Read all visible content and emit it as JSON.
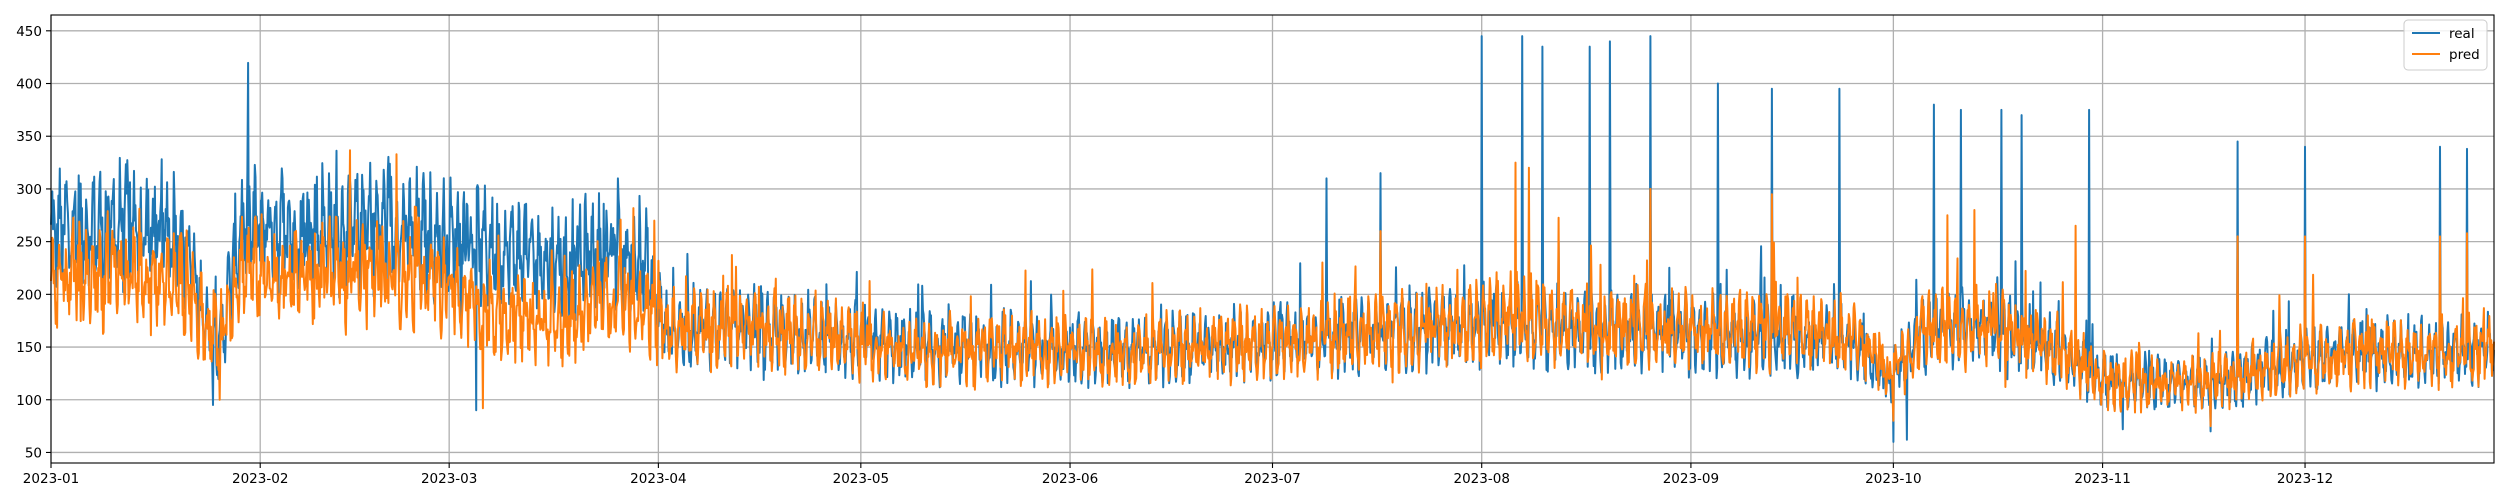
{
  "chart_data": {
    "type": "line",
    "title": "",
    "xlabel": "",
    "ylabel": "",
    "x_range": [
      "2023-01-01",
      "2023-12-29"
    ],
    "ylim": [
      40,
      465
    ],
    "grid": true,
    "legend_position": "top-right",
    "x_ticks": [
      "2023-01",
      "2023-02",
      "2023-03",
      "2023-04",
      "2023-05",
      "2023-06",
      "2023-07",
      "2023-08",
      "2023-09",
      "2023-10",
      "2023-11",
      "2023-12"
    ],
    "y_ticks": [
      "50",
      "100",
      "150",
      "200",
      "250",
      "300",
      "350",
      "400",
      "450"
    ],
    "series": [
      {
        "name": "real",
        "color": "#1f77b4",
        "points": [
          [
            "2023-01-01",
            255
          ],
          [
            "2023-01-04",
            265
          ],
          [
            "2023-01-08",
            262
          ],
          [
            "2023-01-12",
            268
          ],
          [
            "2023-01-16",
            258
          ],
          [
            "2023-01-20",
            262
          ],
          [
            "2023-01-24",
            175
          ],
          [
            "2023-01-26",
            150
          ],
          [
            "2023-01-29",
            262
          ],
          [
            "2023-02-02",
            265
          ],
          [
            "2023-02-06",
            258
          ],
          [
            "2023-02-10",
            265
          ],
          [
            "2023-02-14",
            260
          ],
          [
            "2023-02-18",
            265
          ],
          [
            "2023-02-22",
            262
          ],
          [
            "2023-02-26",
            255
          ],
          [
            "2023-03-02",
            250
          ],
          [
            "2023-03-06",
            245
          ],
          [
            "2023-03-10",
            240
          ],
          [
            "2023-03-14",
            235
          ],
          [
            "2023-03-18",
            230
          ],
          [
            "2023-03-22",
            240
          ],
          [
            "2023-03-26",
            235
          ],
          [
            "2023-03-30",
            230
          ],
          [
            "2023-04-02",
            165
          ],
          [
            "2023-04-08",
            170
          ],
          [
            "2023-04-15",
            168
          ],
          [
            "2023-04-22",
            165
          ],
          [
            "2023-05-01",
            155
          ],
          [
            "2023-05-08",
            150
          ],
          [
            "2023-05-15",
            148
          ],
          [
            "2023-05-22",
            150
          ],
          [
            "2023-06-01",
            148
          ],
          [
            "2023-06-10",
            145
          ],
          [
            "2023-06-20",
            150
          ],
          [
            "2023-07-01",
            155
          ],
          [
            "2023-07-10",
            160
          ],
          [
            "2023-07-20",
            165
          ],
          [
            "2023-07-31",
            170
          ],
          [
            "2023-08-05",
            175
          ],
          [
            "2023-08-15",
            165
          ],
          [
            "2023-08-25",
            165
          ],
          [
            "2023-09-05",
            160
          ],
          [
            "2023-09-15",
            160
          ],
          [
            "2023-09-25",
            155
          ],
          [
            "2023-10-01",
            120
          ],
          [
            "2023-10-05",
            165
          ],
          [
            "2023-10-15",
            170
          ],
          [
            "2023-10-25",
            150
          ],
          [
            "2023-11-01",
            120
          ],
          [
            "2023-11-10",
            115
          ],
          [
            "2023-11-20",
            120
          ],
          [
            "2023-12-01",
            140
          ],
          [
            "2023-12-10",
            145
          ],
          [
            "2023-12-20",
            145
          ],
          [
            "2023-12-29",
            150
          ]
        ],
        "peaks": [
          [
            "2023-01-25",
            325
          ],
          [
            "2023-03-26",
            310
          ],
          [
            "2023-07-09",
            310
          ],
          [
            "2023-07-17",
            315
          ],
          [
            "2023-08-01",
            445
          ],
          [
            "2023-08-07",
            445
          ],
          [
            "2023-08-10",
            435
          ],
          [
            "2023-08-17",
            435
          ],
          [
            "2023-08-20",
            440
          ],
          [
            "2023-08-26",
            445
          ],
          [
            "2023-09-05",
            400
          ],
          [
            "2023-09-13",
            395
          ],
          [
            "2023-09-23",
            395
          ],
          [
            "2023-10-03",
            380
          ],
          [
            "2023-10-07",
            380
          ],
          [
            "2023-10-11",
            375
          ],
          [
            "2023-10-17",
            375
          ],
          [
            "2023-10-20",
            370
          ],
          [
            "2023-10-30",
            375
          ],
          [
            "2023-11-21",
            345
          ],
          [
            "2023-12-01",
            340
          ],
          [
            "2023-12-21",
            340
          ],
          [
            "2023-12-25",
            338
          ]
        ],
        "troughs": [
          [
            "2023-01-25",
            95
          ],
          [
            "2023-03-05",
            90
          ],
          [
            "2023-10-01",
            60
          ],
          [
            "2023-10-03",
            62
          ],
          [
            "2023-11-04",
            72
          ],
          [
            "2023-11-17",
            70
          ]
        ]
      },
      {
        "name": "pred",
        "color": "#ff7f0e",
        "points": [
          [
            "2023-01-01",
            210
          ],
          [
            "2023-01-04",
            218
          ],
          [
            "2023-01-08",
            215
          ],
          [
            "2023-01-12",
            218
          ],
          [
            "2023-01-16",
            212
          ],
          [
            "2023-01-20",
            215
          ],
          [
            "2023-01-24",
            170
          ],
          [
            "2023-01-26",
            160
          ],
          [
            "2023-01-29",
            225
          ],
          [
            "2023-02-02",
            220
          ],
          [
            "2023-02-06",
            215
          ],
          [
            "2023-02-10",
            220
          ],
          [
            "2023-02-14",
            218
          ],
          [
            "2023-02-18",
            222
          ],
          [
            "2023-02-22",
            220
          ],
          [
            "2023-02-26",
            215
          ],
          [
            "2023-03-02",
            200
          ],
          [
            "2023-03-06",
            185
          ],
          [
            "2023-03-10",
            180
          ],
          [
            "2023-03-14",
            175
          ],
          [
            "2023-03-18",
            172
          ],
          [
            "2023-03-22",
            190
          ],
          [
            "2023-03-26",
            195
          ],
          [
            "2023-03-30",
            190
          ],
          [
            "2023-04-02",
            165
          ],
          [
            "2023-04-08",
            168
          ],
          [
            "2023-04-15",
            166
          ],
          [
            "2023-04-22",
            165
          ],
          [
            "2023-05-01",
            155
          ],
          [
            "2023-05-08",
            150
          ],
          [
            "2023-05-15",
            148
          ],
          [
            "2023-05-22",
            150
          ],
          [
            "2023-06-01",
            148
          ],
          [
            "2023-06-10",
            145
          ],
          [
            "2023-06-20",
            150
          ],
          [
            "2023-07-01",
            155
          ],
          [
            "2023-07-10",
            160
          ],
          [
            "2023-07-20",
            165
          ],
          [
            "2023-07-31",
            172
          ],
          [
            "2023-08-05",
            180
          ],
          [
            "2023-08-15",
            170
          ],
          [
            "2023-08-25",
            168
          ],
          [
            "2023-09-05",
            165
          ],
          [
            "2023-09-15",
            165
          ],
          [
            "2023-09-25",
            160
          ],
          [
            "2023-10-01",
            120
          ],
          [
            "2023-10-05",
            165
          ],
          [
            "2023-10-15",
            170
          ],
          [
            "2023-10-25",
            150
          ],
          [
            "2023-11-01",
            120
          ],
          [
            "2023-11-10",
            115
          ],
          [
            "2023-11-20",
            120
          ],
          [
            "2023-12-01",
            140
          ],
          [
            "2023-12-10",
            145
          ],
          [
            "2023-12-20",
            145
          ],
          [
            "2023-12-29",
            150
          ]
        ],
        "peaks": [
          [
            "2023-01-26",
            265
          ],
          [
            "2023-03-27",
            225
          ],
          [
            "2023-07-17",
            260
          ],
          [
            "2023-08-06",
            325
          ],
          [
            "2023-08-08",
            320
          ],
          [
            "2023-08-26",
            300
          ],
          [
            "2023-09-13",
            295
          ],
          [
            "2023-10-09",
            275
          ],
          [
            "2023-10-13",
            280
          ],
          [
            "2023-10-28",
            265
          ],
          [
            "2023-11-21",
            255
          ],
          [
            "2023-12-01",
            255
          ],
          [
            "2023-12-21",
            255
          ],
          [
            "2023-12-25",
            258
          ]
        ],
        "troughs": [
          [
            "2023-01-26",
            100
          ],
          [
            "2023-03-06",
            92
          ],
          [
            "2023-10-01",
            80
          ],
          [
            "2023-11-17",
            75
          ]
        ]
      }
    ]
  }
}
